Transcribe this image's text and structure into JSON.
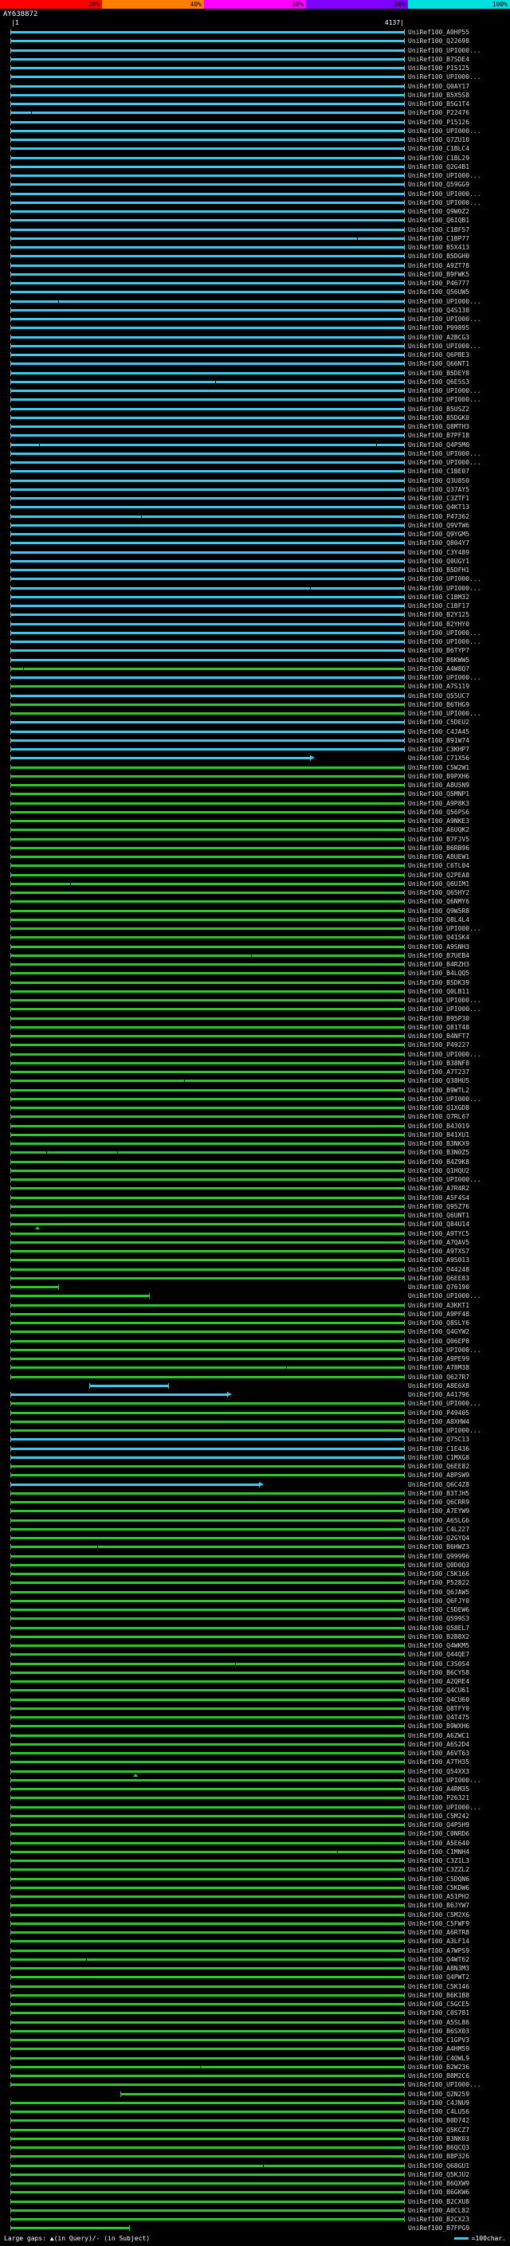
{
  "scale": {
    "segments": [
      {
        "label": "20%",
        "color": "#ff0000"
      },
      {
        "label": "40%",
        "color": "#ff8000"
      },
      {
        "label": "60%",
        "color": "#ff00ff"
      },
      {
        "label": "80%",
        "color": "#8000ff"
      },
      {
        "label": "100%",
        "color": "#00e0e0"
      }
    ]
  },
  "header": {
    "query": "AY638872",
    "ruler_left": "|1",
    "ruler_right": "4137|"
  },
  "colors": {
    "cyan": "#3fc8f0",
    "green": "#2dc82d",
    "label": "#d8d8d8"
  },
  "legend": {
    "left": "Large gaps: ▲(in Query)/- (in Subject)",
    "right_text": "=100char."
  },
  "chart_data": {
    "type": "bar",
    "title": "AY638872",
    "xlabel": "query position",
    "xlim": [
      1,
      4137
    ],
    "orientation": "horizontal",
    "bar_unit": "percent_of_query_span",
    "color_key": {
      "c": "cyan (~100% similarity)",
      "g": "green"
    },
    "hit_format": "[label, color, x1_pct, x2_pct, arrow, gap_ticks_pct[], query_gap_triangles_pct[]]",
    "hits": [
      [
        "UniRef100_A0HP55",
        "c"
      ],
      [
        "UniRef100_Q22698",
        "c"
      ],
      [
        "UniRef100_UPI000...",
        "c"
      ],
      [
        "UniRef100_B7SDE4",
        "c"
      ],
      [
        "UniRef100_P15125",
        "c"
      ],
      [
        "UniRef100_UPI000...",
        "c"
      ],
      [
        "UniRef100_Q0AY17",
        "c"
      ],
      [
        "UniRef100_B5X5S8",
        "c"
      ],
      [
        "UniRef100_B5G1T4",
        "c"
      ],
      [
        "UniRef100_P22476",
        "c",
        0,
        100,
        0,
        [
          5
        ]
      ],
      [
        "UniRef100_P15126",
        "c"
      ],
      [
        "UniRef100_UPI000...",
        "c"
      ],
      [
        "UniRef100_Q7ZU10",
        "c"
      ],
      [
        "UniRef100_C1BLC4",
        "c"
      ],
      [
        "UniRef100_C1BL29",
        "c"
      ],
      [
        "UniRef100_Q2G4B1",
        "c"
      ],
      [
        "UniRef100_UPI000...",
        "c"
      ],
      [
        "UniRef100_Q59GG9",
        "c"
      ],
      [
        "UniRef100_UPI000...",
        "c"
      ],
      [
        "UniRef100_UPI000...",
        "c"
      ],
      [
        "UniRef100_Q9W0Z2",
        "c"
      ],
      [
        "UniRef100_Q6IQB1",
        "c"
      ],
      [
        "UniRef100_C1BF57",
        "c"
      ],
      [
        "UniRef100_C1BP77",
        "c",
        0,
        100,
        0,
        [
          88
        ]
      ],
      [
        "UniRef100_B5X413",
        "c"
      ],
      [
        "UniRef100_B5DGH0",
        "c"
      ],
      [
        "UniRef100_A9ZT78",
        "c"
      ],
      [
        "UniRef100_B9FWK5",
        "c"
      ],
      [
        "UniRef100_P46777",
        "c"
      ],
      [
        "UniRef100_Q56UW5",
        "c"
      ],
      [
        "UniRef100_UPI000...",
        "c",
        0,
        100,
        0,
        [
          12
        ]
      ],
      [
        "UniRef100_Q4S138",
        "c"
      ],
      [
        "UniRef100_UPI000...",
        "c"
      ],
      [
        "UniRef100_P99895",
        "c"
      ],
      [
        "UniRef100_A2BCG3",
        "c"
      ],
      [
        "UniRef100_UPI000...",
        "c"
      ],
      [
        "UniRef100_Q6PBE3",
        "c"
      ],
      [
        "UniRef100_Q66NT1",
        "c"
      ],
      [
        "UniRef100_B5DEY8",
        "c"
      ],
      [
        "UniRef100_Q6E5S3",
        "c",
        0,
        100,
        0,
        [
          52
        ]
      ],
      [
        "UniRef100_UPI000...",
        "c"
      ],
      [
        "UniRef100_UPI000...",
        "c"
      ],
      [
        "UniRef100_B5USZ2",
        "c"
      ],
      [
        "UniRef100_B5DGK0",
        "c"
      ],
      [
        "UniRef100_Q8MTH3",
        "c"
      ],
      [
        "UniRef100_B7PF18",
        "c"
      ],
      [
        "UniRef100_Q4P5M0",
        "c",
        0,
        100,
        0,
        [
          7,
          93
        ]
      ],
      [
        "UniRef100_UPI000...",
        "c"
      ],
      [
        "UniRef100_UPI000...",
        "c"
      ],
      [
        "UniRef100_C1BE07",
        "c"
      ],
      [
        "UniRef100_Q3U850",
        "c"
      ],
      [
        "UniRef100_Q37AY5",
        "c"
      ],
      [
        "UniRef100_C3ZTF1",
        "c"
      ],
      [
        "UniRef100_Q4KT13",
        "c"
      ],
      [
        "UniRef100_P47362",
        "c",
        0,
        100,
        0,
        [
          33
        ]
      ],
      [
        "UniRef100_Q9VTW6",
        "c"
      ],
      [
        "UniRef100_Q9YGM5",
        "c"
      ],
      [
        "UniRef100_Q804Y7",
        "c"
      ],
      [
        "UniRef100_C3Y489",
        "c"
      ],
      [
        "UniRef100_Q0UGY1",
        "c"
      ],
      [
        "UniRef100_B5DFH1",
        "c"
      ],
      [
        "UniRef100_UPI000...",
        "c"
      ],
      [
        "UniRef100_UPI000...",
        "c",
        0,
        100,
        0,
        [
          76
        ]
      ],
      [
        "UniRef100_C1BM32",
        "c"
      ],
      [
        "UniRef100_C1BF17",
        "c"
      ],
      [
        "UniRef100_B2Y125",
        "c"
      ],
      [
        "UniRef100_B2YHY0",
        "c"
      ],
      [
        "UniRef100_UPI000...",
        "c"
      ],
      [
        "UniRef100_UPI000...",
        "c"
      ],
      [
        "UniRef100_B6TYP7",
        "c"
      ],
      [
        "UniRef100_B6KWW5",
        "c"
      ],
      [
        "UniRef100_A4W8Q7",
        "g",
        0,
        100,
        0,
        [
          3
        ]
      ],
      [
        "UniRef100_UPI000...",
        "c"
      ],
      [
        "UniRef100_A7S119",
        "g"
      ],
      [
        "UniRef100_Q55UC7",
        "c"
      ],
      [
        "UniRef100_B6THG9",
        "g"
      ],
      [
        "UniRef100_UPI000...",
        "g"
      ],
      [
        "UniRef100_C5DEU2",
        "c"
      ],
      [
        "UniRef100_C4JA45",
        "c"
      ],
      [
        "UniRef100_B91W74",
        "c"
      ],
      [
        "UniRef100_C3KHP7",
        "c"
      ],
      [
        "UniRef100_C71X56",
        "c",
        0,
        76,
        1
      ],
      [
        "UniRef100_C5W2W1",
        "g"
      ],
      [
        "UniRef100_B9PXH6",
        "g"
      ],
      [
        "UniRef100_A8U5N9",
        "g"
      ],
      [
        "UniRef100_Q5MNP1",
        "g"
      ],
      [
        "UniRef100_A9P8K3",
        "g"
      ],
      [
        "UniRef100_Q56PS6",
        "g"
      ],
      [
        "UniRef100_A9NKE3",
        "g"
      ],
      [
        "UniRef100_A6UQK2",
        "g"
      ],
      [
        "UniRef100_B7FJV5",
        "g"
      ],
      [
        "UniRef100_B6RB96",
        "g"
      ],
      [
        "UniRef100_A8UEW1",
        "g"
      ],
      [
        "UniRef100_C6TL04",
        "g"
      ],
      [
        "UniRef100_Q2PEA8",
        "g"
      ],
      [
        "UniRef100_Q6UIM1",
        "g",
        0,
        100,
        0,
        [
          15
        ]
      ],
      [
        "UniRef100_Q65HY2",
        "g"
      ],
      [
        "UniRef100_Q6NMY6",
        "g"
      ],
      [
        "UniRef100_Q9W5R8",
        "g"
      ],
      [
        "UniRef100_Q8L4L4",
        "g"
      ],
      [
        "UniRef100_UPI000...",
        "g"
      ],
      [
        "UniRef100_Q41SK4",
        "g"
      ],
      [
        "UniRef100_A9SNH3",
        "g"
      ],
      [
        "UniRef100_B7UEB4",
        "g",
        0,
        100,
        0,
        [
          61
        ]
      ],
      [
        "UniRef100_B4RZH3",
        "g"
      ],
      [
        "UniRef100_B4LQQ5",
        "g"
      ],
      [
        "UniRef100_B5DK39",
        "g"
      ],
      [
        "UniRef100_Q0LB11",
        "g"
      ],
      [
        "UniRef100_UPI000...",
        "g"
      ],
      [
        "UniRef100_UPI000...",
        "g"
      ],
      [
        "UniRef100_B95P30",
        "g"
      ],
      [
        "UniRef100_Q81T48",
        "g"
      ],
      [
        "UniRef100_B4NFT7",
        "g"
      ],
      [
        "UniRef100_P49227",
        "g"
      ],
      [
        "UniRef100_UPI000...",
        "g"
      ],
      [
        "UniRef100_B38NF8",
        "g"
      ],
      [
        "UniRef100_A7T237",
        "g"
      ],
      [
        "UniRef100_Q38HU5",
        "g",
        0,
        100,
        0,
        [
          44
        ]
      ],
      [
        "UniRef100_B9WTL2",
        "g"
      ],
      [
        "UniRef100_UPI000...",
        "g"
      ],
      [
        "UniRef100_Q1XGD8",
        "g"
      ],
      [
        "UniRef100_Q7RL67",
        "g"
      ],
      [
        "UniRef100_B4J019",
        "g"
      ],
      [
        "UniRef100_B41XU1",
        "g"
      ],
      [
        "UniRef100_B3NKX9",
        "g"
      ],
      [
        "UniRef100_B3N0Z5",
        "g",
        0,
        100,
        0,
        [
          9,
          27
        ]
      ],
      [
        "UniRef100_B4Z9K8",
        "g"
      ],
      [
        "UniRef100_Q1HQU2",
        "g"
      ],
      [
        "UniRef100_UPI000...",
        "g"
      ],
      [
        "UniRef100_A7R4R2",
        "g"
      ],
      [
        "UniRef100_A5F4S4",
        "g"
      ],
      [
        "UniRef100_Q95Z76",
        "g"
      ],
      [
        "UniRef100_Q6UNT1",
        "g"
      ],
      [
        "UniRef100_Q84U14",
        "g",
        0,
        100,
        0,
        [],
        [
          6
        ]
      ],
      [
        "UniRef100_A9TYC5",
        "g"
      ],
      [
        "UniRef100_A7QAV5",
        "g"
      ],
      [
        "UniRef100_A9TXS7",
        "g"
      ],
      [
        "UniRef100_A95013",
        "g"
      ],
      [
        "UniRef100_O44248",
        "g"
      ],
      [
        "UniRef100_Q6EE83",
        "g"
      ],
      [
        "UniRef100_Q76190",
        "g",
        0,
        12
      ],
      [
        "UniRef100_UPI000...",
        "g",
        0,
        35
      ],
      [
        "UniRef100_A3KKT1",
        "g"
      ],
      [
        "UniRef100_A9PF48",
        "g"
      ],
      [
        "UniRef100_Q8SLY6",
        "g"
      ],
      [
        "UniRef100_Q4GYW2",
        "g"
      ],
      [
        "UniRef100_Q06EP8",
        "g"
      ],
      [
        "UniRef100_UPI000...",
        "g"
      ],
      [
        "UniRef100_A9PE99",
        "g"
      ],
      [
        "UniRef100_A78M38",
        "g",
        0,
        100,
        0,
        [
          70
        ]
      ],
      [
        "UniRef100_Q627R7",
        "g"
      ],
      [
        "UniRef100_A8E6X8",
        "c",
        20,
        40
      ],
      [
        "UniRef100_A41796",
        "c",
        0,
        55,
        1
      ],
      [
        "UniRef100_UPI000...",
        "g"
      ],
      [
        "UniRef100_P49405",
        "g"
      ],
      [
        "UniRef100_A8XHW4",
        "g"
      ],
      [
        "UniRef100_UPI000...",
        "g"
      ],
      [
        "UniRef100_Q75C13",
        "c"
      ],
      [
        "UniRef100_C1E436",
        "c"
      ],
      [
        "UniRef100_C1MXG8",
        "c"
      ],
      [
        "UniRef100_Q6EE82",
        "g"
      ],
      [
        "UniRef100_A8PSW9",
        "g"
      ],
      [
        "UniRef100_Q6C4Z8",
        "c",
        0,
        63,
        1
      ],
      [
        "UniRef100_B3TJH5",
        "g"
      ],
      [
        "UniRef100_Q6CRR9",
        "g"
      ],
      [
        "UniRef100_A7EYW9",
        "g"
      ],
      [
        "UniRef100_A65LG6",
        "g"
      ],
      [
        "UniRef100_C4L227",
        "g"
      ],
      [
        "UniRef100_Q2GYQ4",
        "g"
      ],
      [
        "UniRef100_B6HWZ3",
        "g",
        0,
        100,
        0,
        [
          22
        ]
      ],
      [
        "UniRef100_Q99996",
        "g"
      ],
      [
        "UniRef100_Q0D0Q3",
        "g"
      ],
      [
        "UniRef100_C5K166",
        "g"
      ],
      [
        "UniRef100_P52822",
        "g"
      ],
      [
        "UniRef100_Q6JAW5",
        "g"
      ],
      [
        "UniRef100_Q6FJY0",
        "g"
      ],
      [
        "UniRef100_C5DEW6",
        "g"
      ],
      [
        "UniRef100_Q599S3",
        "g"
      ],
      [
        "UniRef100_Q58EL7",
        "g"
      ],
      [
        "UniRef100_B2B8X2",
        "g"
      ],
      [
        "UniRef100_Q4WKM5",
        "g"
      ],
      [
        "UniRef100_Q44QE7",
        "g"
      ],
      [
        "UniRef100_C3S0S4",
        "g",
        0,
        100,
        0,
        [
          57
        ]
      ],
      [
        "UniRef100_B6CY58",
        "g"
      ],
      [
        "UniRef100_A2QRE4",
        "g"
      ],
      [
        "UniRef100_Q4CU61",
        "g"
      ],
      [
        "UniRef100_Q4CU60",
        "g"
      ],
      [
        "UniRef100_Q8TFY0",
        "g"
      ],
      [
        "UniRef100_Q4T475",
        "g"
      ],
      [
        "UniRef100_B9WXH6",
        "g"
      ],
      [
        "UniRef100_A6ZWC1",
        "g"
      ],
      [
        "UniRef100_A6S2D4",
        "g"
      ],
      [
        "UniRef100_A6VT63",
        "g"
      ],
      [
        "UniRef100_A7TH35",
        "g"
      ],
      [
        "UniRef100_Q54XX3",
        "g",
        0,
        100,
        0,
        [],
        [
          31
        ]
      ],
      [
        "UniRef100_UPI000...",
        "g"
      ],
      [
        "UniRef100_A4RM35",
        "g"
      ],
      [
        "UniRef100_P26321",
        "g"
      ],
      [
        "UniRef100_UPI000...",
        "g"
      ],
      [
        "UniRef100_C5M242",
        "g"
      ],
      [
        "UniRef100_Q4P5H9",
        "g"
      ],
      [
        "UniRef100_C0NRD6",
        "g"
      ],
      [
        "UniRef100_A5E640",
        "g"
      ],
      [
        "UniRef100_C1MNH4",
        "g",
        0,
        100,
        0,
        [
          83
        ]
      ],
      [
        "UniRef100_C3ZIL3",
        "g"
      ],
      [
        "UniRef100_C3ZZL2",
        "g"
      ],
      [
        "UniRef100_C5DQN6",
        "g"
      ],
      [
        "UniRef100_C5KDW6",
        "g"
      ],
      [
        "UniRef100_A51PH2",
        "g"
      ],
      [
        "UniRef100_B6JYW7",
        "g"
      ],
      [
        "UniRef100_C5M2X6",
        "g"
      ],
      [
        "UniRef100_C5FWF9",
        "g"
      ],
      [
        "UniRef100_A6RTR8",
        "g"
      ],
      [
        "UniRef100_A3LF14",
        "g"
      ],
      [
        "UniRef100_A7WPS9",
        "g"
      ],
      [
        "UniRef100_Q4WT62",
        "g",
        0,
        100,
        0,
        [
          19
        ]
      ],
      [
        "UniRef100_A8N3M3",
        "g"
      ],
      [
        "UniRef100_Q4PWT2",
        "g"
      ],
      [
        "UniRef100_C5K146",
        "g"
      ],
      [
        "UniRef100_B6K1B8",
        "g"
      ],
      [
        "UniRef100_C5GCE5",
        "g"
      ],
      [
        "UniRef100_C0S781",
        "g"
      ],
      [
        "UniRef100_A5SL86",
        "g"
      ],
      [
        "UniRef100_B6SX03",
        "g"
      ],
      [
        "UniRef100_C1GPV3",
        "g"
      ],
      [
        "UniRef100_A4HM59",
        "g"
      ],
      [
        "UniRef100_C4QWL9",
        "g"
      ],
      [
        "UniRef100_B2W236",
        "g",
        0,
        100,
        0,
        [
          48
        ]
      ],
      [
        "UniRef100_B8M2C6",
        "g"
      ],
      [
        "UniRef100_UPI000...",
        "g"
      ],
      [
        "UniRef100_Q2N259",
        "g",
        28,
        100
      ],
      [
        "UniRef100_C4JNU9",
        "g"
      ],
      [
        "UniRef100_C4LU56",
        "g"
      ],
      [
        "UniRef100_B0D742",
        "g"
      ],
      [
        "UniRef100_Q5KCZ7",
        "g"
      ],
      [
        "UniRef100_B3NK03",
        "g"
      ],
      [
        "UniRef100_B6QCQ3",
        "g"
      ],
      [
        "UniRef100_B8P326",
        "g"
      ],
      [
        "UniRef100_Q68GU1",
        "g",
        0,
        100,
        0,
        [
          64
        ]
      ],
      [
        "UniRef100_Q5KJU2",
        "g"
      ],
      [
        "UniRef100_B6QXW9",
        "g"
      ],
      [
        "UniRef100_B6GKW6",
        "g"
      ],
      [
        "UniRef100_B2CXU8",
        "g"
      ],
      [
        "UniRef100_A0CL82",
        "g"
      ],
      [
        "UniRef100_B2CX23",
        "g"
      ],
      [
        "UniRef100_B7FPG9",
        "g",
        0,
        30
      ]
    ]
  }
}
